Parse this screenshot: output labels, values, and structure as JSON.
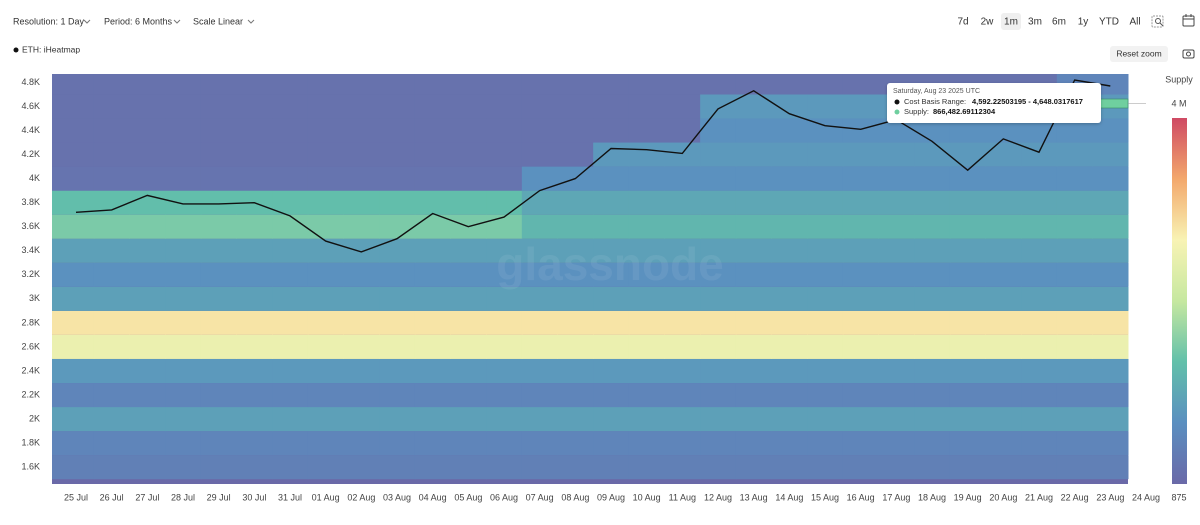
{
  "ui": {
    "resolution": "Resolution: 1 Day",
    "period": "Period: 6 Months",
    "scale": "Scale Linear",
    "ranges": [
      "7d",
      "2w",
      "1m",
      "3m",
      "6m",
      "1y",
      "YTD",
      "All"
    ],
    "selected_range": "1m",
    "reset_zoom": "Reset zoom"
  },
  "chart_data": {
    "type": "heatmap",
    "watermark": "glassnode",
    "categories": [
      "25 Jul",
      "26 Jul",
      "27 Jul",
      "28 Jul",
      "29 Jul",
      "30 Jul",
      "31 Jul",
      "01 Aug",
      "02 Aug",
      "03 Aug",
      "04 Aug",
      "05 Aug",
      "06 Aug",
      "07 Aug",
      "08 Aug",
      "09 Aug",
      "10 Aug",
      "11 Aug",
      "12 Aug",
      "13 Aug",
      "14 Aug",
      "15 Aug",
      "16 Aug",
      "17 Aug",
      "18 Aug",
      "19 Aug",
      "20 Aug",
      "21 Aug",
      "22 Aug",
      "23 Aug",
      "24 Aug"
    ],
    "series": [
      {
        "name": "ETH: iHeatmap",
        "color": "#111111",
        "values": [
          3720,
          3740,
          3860,
          3790,
          3790,
          3800,
          3690,
          3480,
          3390,
          3500,
          3710,
          3600,
          3680,
          3900,
          4000,
          4250,
          4240,
          4210,
          4580,
          4730,
          4540,
          4440,
          4410,
          4490,
          4310,
          4070,
          4330,
          4220,
          4820,
          4770,
          null
        ]
      }
    ],
    "ylim": [
      1460,
      4870
    ],
    "yticks": [
      {
        "value": 1600,
        "label": "1.6K"
      },
      {
        "value": 1800,
        "label": "1.8K"
      },
      {
        "value": 2000,
        "label": "2K"
      },
      {
        "value": 2200,
        "label": "2.2K"
      },
      {
        "value": 2400,
        "label": "2.4K"
      },
      {
        "value": 2600,
        "label": "2.6K"
      },
      {
        "value": 2800,
        "label": "2.8K"
      },
      {
        "value": 3000,
        "label": "3K"
      },
      {
        "value": 3200,
        "label": "3.2K"
      },
      {
        "value": 3400,
        "label": "3.4K"
      },
      {
        "value": 3600,
        "label": "3.6K"
      },
      {
        "value": 3800,
        "label": "3.8K"
      },
      {
        "value": 4000,
        "label": "4K"
      },
      {
        "value": 4200,
        "label": "4.2K"
      },
      {
        "value": 4400,
        "label": "4.4K"
      },
      {
        "value": 4600,
        "label": "4.6K"
      },
      {
        "value": 4800,
        "label": "4.8K"
      }
    ],
    "grid": false,
    "heatmap": {
      "bins": [
        1500,
        1700,
        1900,
        2100,
        2300,
        2500,
        2700,
        2900,
        3100,
        3300,
        3500,
        3700,
        3900,
        4100,
        4300,
        4500,
        4700,
        4900
      ],
      "colorscale": [
        "#6a69a8",
        "#5b8fc0",
        "#62c0aa",
        "#c6e8a0",
        "#f8f3b4",
        "#f3a86c",
        "#cf4a64"
      ],
      "values": [
        [
          400000,
          400000,
          400000,
          400000,
          400000,
          400000,
          400000,
          400000,
          400000,
          400000,
          400000,
          400000,
          400000,
          400000,
          400000,
          400000,
          400000,
          400000,
          400000,
          400000,
          400000,
          400000,
          400000,
          400000,
          400000,
          400000,
          400000,
          400000,
          400000,
          400000,
          null
        ],
        [
          500000,
          500000,
          500000,
          500000,
          500000,
          500000,
          500000,
          500000,
          500000,
          500000,
          500000,
          500000,
          500000,
          500000,
          500000,
          500000,
          500000,
          500000,
          500000,
          500000,
          500000,
          500000,
          500000,
          500000,
          500000,
          500000,
          500000,
          500000,
          500000,
          500000,
          null
        ],
        [
          900000,
          900000,
          900000,
          900000,
          900000,
          900000,
          900000,
          900000,
          900000,
          900000,
          900000,
          900000,
          900000,
          900000,
          900000,
          900000,
          900000,
          900000,
          900000,
          900000,
          900000,
          900000,
          900000,
          900000,
          900000,
          900000,
          900000,
          900000,
          900000,
          900000,
          null
        ],
        [
          500000,
          500000,
          500000,
          500000,
          500000,
          500000,
          500000,
          500000,
          500000,
          500000,
          500000,
          500000,
          500000,
          500000,
          500000,
          500000,
          500000,
          500000,
          500000,
          500000,
          500000,
          500000,
          500000,
          500000,
          500000,
          500000,
          500000,
          500000,
          500000,
          500000,
          null
        ],
        [
          800000,
          800000,
          800000,
          800000,
          800000,
          800000,
          800000,
          800000,
          800000,
          800000,
          800000,
          800000,
          800000,
          800000,
          800000,
          800000,
          800000,
          800000,
          800000,
          800000,
          800000,
          800000,
          800000,
          800000,
          800000,
          800000,
          800000,
          800000,
          800000,
          800000,
          null
        ],
        [
          2500000,
          2500000,
          2500000,
          2500000,
          2500000,
          2500000,
          2500000,
          2500000,
          2500000,
          2500000,
          2500000,
          2500000,
          2500000,
          2500000,
          2500000,
          2500000,
          2500000,
          2500000,
          2500000,
          2500000,
          2500000,
          2500000,
          2500000,
          2500000,
          2500000,
          2500000,
          2500000,
          2500000,
          2500000,
          2500000,
          null
        ],
        [
          2800000,
          2800000,
          2800000,
          2800000,
          2800000,
          2800000,
          2800000,
          2800000,
          2800000,
          2800000,
          2800000,
          2800000,
          2800000,
          2800000,
          2800000,
          2800000,
          2800000,
          2800000,
          2800000,
          2800000,
          2800000,
          2800000,
          2800000,
          2800000,
          2800000,
          2800000,
          2800000,
          2800000,
          2800000,
          2800000,
          null
        ],
        [
          900000,
          900000,
          900000,
          900000,
          900000,
          900000,
          900000,
          900000,
          900000,
          900000,
          900000,
          900000,
          900000,
          900000,
          900000,
          900000,
          900000,
          900000,
          900000,
          900000,
          900000,
          900000,
          900000,
          900000,
          900000,
          900000,
          900000,
          900000,
          900000,
          900000,
          null
        ],
        [
          700000,
          700000,
          700000,
          700000,
          700000,
          700000,
          700000,
          700000,
          700000,
          700000,
          700000,
          700000,
          700000,
          700000,
          700000,
          700000,
          700000,
          700000,
          700000,
          700000,
          700000,
          700000,
          700000,
          700000,
          700000,
          700000,
          700000,
          700000,
          700000,
          700000,
          null
        ],
        [
          900000,
          900000,
          900000,
          900000,
          900000,
          900000,
          900000,
          900000,
          900000,
          900000,
          900000,
          900000,
          900000,
          900000,
          900000,
          900000,
          900000,
          900000,
          900000,
          900000,
          900000,
          900000,
          900000,
          900000,
          900000,
          900000,
          900000,
          900000,
          900000,
          900000,
          null
        ],
        [
          1500000,
          1500000,
          1500000,
          1500000,
          1500000,
          1500000,
          1500000,
          1500000,
          1500000,
          1500000,
          1500000,
          1500000,
          1500000,
          1200000,
          1200000,
          1200000,
          1200000,
          1200000,
          1200000,
          1200000,
          1200000,
          1200000,
          1200000,
          1200000,
          1200000,
          1200000,
          1200000,
          1200000,
          1200000,
          1200000,
          null
        ],
        [
          1300000,
          1300000,
          1300000,
          1300000,
          1300000,
          1300000,
          1300000,
          1300000,
          1300000,
          1300000,
          1300000,
          1300000,
          1300000,
          1000000,
          1000000,
          1000000,
          1000000,
          1000000,
          1000000,
          1000000,
          1000000,
          1000000,
          1000000,
          1000000,
          1000000,
          1000000,
          1000000,
          1000000,
          1000000,
          1000000,
          null
        ],
        [
          200000,
          200000,
          200000,
          200000,
          200000,
          200000,
          200000,
          200000,
          200000,
          200000,
          200000,
          200000,
          200000,
          700000,
          700000,
          700000,
          700000,
          700000,
          700000,
          700000,
          700000,
          700000,
          700000,
          700000,
          700000,
          700000,
          700000,
          700000,
          700000,
          700000,
          null
        ],
        [
          150000,
          150000,
          150000,
          150000,
          150000,
          150000,
          150000,
          150000,
          150000,
          150000,
          150000,
          150000,
          150000,
          150000,
          150000,
          800000,
          800000,
          800000,
          800000,
          800000,
          800000,
          800000,
          800000,
          800000,
          800000,
          800000,
          800000,
          800000,
          800000,
          800000,
          null
        ],
        [
          150000,
          150000,
          150000,
          150000,
          150000,
          150000,
          150000,
          150000,
          150000,
          150000,
          150000,
          150000,
          150000,
          150000,
          150000,
          150000,
          150000,
          150000,
          700000,
          700000,
          700000,
          700000,
          700000,
          700000,
          700000,
          700000,
          700000,
          700000,
          700000,
          700000,
          null
        ],
        [
          150000,
          150000,
          150000,
          150000,
          150000,
          150000,
          150000,
          150000,
          150000,
          150000,
          150000,
          150000,
          150000,
          150000,
          150000,
          150000,
          150000,
          150000,
          800000,
          800000,
          800000,
          800000,
          800000,
          800000,
          800000,
          800000,
          800000,
          800000,
          800000,
          800000,
          null
        ],
        [
          150000,
          150000,
          150000,
          150000,
          150000,
          150000,
          150000,
          150000,
          150000,
          150000,
          150000,
          150000,
          150000,
          150000,
          150000,
          150000,
          150000,
          150000,
          150000,
          150000,
          150000,
          150000,
          150000,
          150000,
          150000,
          150000,
          150000,
          150000,
          500000,
          500000,
          null
        ]
      ]
    },
    "colorbar": {
      "title": "Supply",
      "lim": [
        875,
        4000000
      ],
      "ticks": [
        {
          "value": 4000000,
          "label": "4 M"
        },
        875
      ]
    },
    "tooltip": {
      "date": "Saturday, Aug 23 2025 UTC",
      "range_label": "Cost Basis Range:",
      "range_value": "4,592.22503195 - 4,648.0317617",
      "supply_label": "Supply:",
      "supply_value": "866,482.69112304",
      "supply_color": "#6fcf9f"
    }
  }
}
